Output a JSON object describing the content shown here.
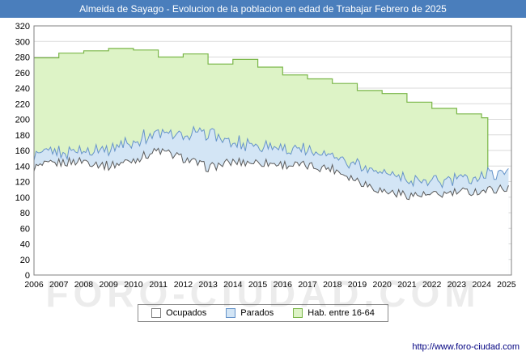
{
  "header": {
    "title": "Almeida de Sayago - Evolucion de la poblacion en edad de Trabajar Febrero de 2025"
  },
  "watermark": "FORO-CIUDAD.COM",
  "footer": {
    "url": "http://www.foro-ciudad.com"
  },
  "colors": {
    "titlebar_bg": "#4a7ebc",
    "grid": "#d9d9d9",
    "plot_border": "#808080",
    "hab_fill": "#ddf3c6",
    "hab_stroke": "#7ab648",
    "parados_fill": "#d3e5f5",
    "parados_stroke": "#6593c9",
    "ocupados_fill": "#ffffff",
    "ocupados_stroke": "#5a5a5a"
  },
  "legend": [
    {
      "label": "Ocupados",
      "fill": "#ffffff",
      "stroke": "#7f7f7f"
    },
    {
      "label": "Parados",
      "fill": "#d3e5f5",
      "stroke": "#6593c9"
    },
    {
      "label": "Hab. entre 16-64",
      "fill": "#ddf3c6",
      "stroke": "#7ab648"
    }
  ],
  "chart_data": {
    "type": "area",
    "title": "Almeida de Sayago - Evolucion de la poblacion en edad de Trabajar Febrero de 2025",
    "xlabel": "",
    "ylabel": "",
    "ylim": [
      0,
      320
    ],
    "ytick_step": 20,
    "grid": "horizontal",
    "legend_position": "bottom",
    "x_start": 2006,
    "x_axis_end": 2025.2,
    "x_data_end": 2025.0833,
    "x_tick_years": [
      2006,
      2007,
      2008,
      2009,
      2010,
      2011,
      2012,
      2013,
      2014,
      2015,
      2016,
      2017,
      2018,
      2019,
      2020,
      2021,
      2022,
      2023,
      2024,
      2025
    ],
    "series": [
      {
        "name": "Hab. entre 16-64",
        "type": "step_annual",
        "years_start": 2006,
        "x_end": 2024.25,
        "values": [
          279,
          285,
          288,
          291,
          289,
          280,
          284,
          271,
          277,
          267,
          257,
          252,
          246,
          237,
          233,
          222,
          214,
          207,
          202
        ],
        "fill": "#ddf3c6",
        "stroke": "#7ab648"
      },
      {
        "name": "Parados",
        "type": "monthly_stacked_on_ocupados",
        "years_start": 2006,
        "values": [
          14,
          14,
          13,
          23,
          24,
          23,
          30,
          45,
          25,
          23,
          21,
          18,
          18,
          21,
          24,
          19,
          16,
          16,
          20,
          23
        ],
        "fill": "#d3e5f5",
        "stroke": "#6593c9",
        "noise": 5
      },
      {
        "name": "Ocupados",
        "type": "monthly",
        "years_start": 2006,
        "values": [
          138,
          144,
          147,
          140,
          148,
          160,
          150,
          138,
          145,
          145,
          142,
          140,
          137,
          122,
          108,
          103,
          102,
          106,
          108,
          112
        ],
        "fill": "#ffffff",
        "stroke": "#5a5a5a",
        "noise": 6
      }
    ]
  }
}
